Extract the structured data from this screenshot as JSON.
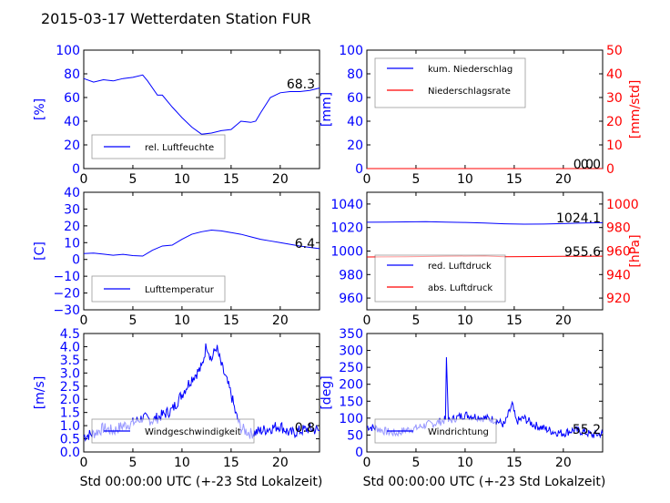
{
  "title": "2015-03-17 Wetterdaten Station FUR",
  "xlabel": "Std 00:00:00 UTC (+-23 Std Lokalzeit)",
  "colors": {
    "primary": "#0000ff",
    "secondary": "#ff0000",
    "light": "#8080ff"
  },
  "chart_data": [
    {
      "id": "p0",
      "type": "line",
      "ylabel": "[%]",
      "xlim": [
        0,
        24
      ],
      "ylim": [
        0,
        100
      ],
      "xticks": [
        "0",
        "5",
        "10",
        "15",
        "20"
      ],
      "yticks": [
        "0",
        "20",
        "40",
        "60",
        "80",
        "100"
      ],
      "legend": {
        "position": "lower-left",
        "entries": [
          "rel. Luftfeuchte"
        ]
      },
      "last_value": "68.3",
      "series": [
        {
          "name": "rel. Luftfeuchte",
          "x": [
            0,
            1,
            2,
            3,
            4,
            5,
            6,
            6.5,
            7.5,
            8,
            9,
            10,
            11,
            12,
            13,
            14,
            15,
            16,
            17,
            17.5,
            18,
            19,
            20,
            21,
            22,
            23,
            24
          ],
          "values": [
            76,
            73,
            75,
            74,
            76,
            77,
            79,
            74,
            62,
            62,
            52,
            43,
            35,
            29,
            30,
            32,
            33,
            40,
            39,
            40,
            47,
            60,
            64,
            65,
            65,
            66,
            68
          ]
        }
      ]
    },
    {
      "id": "p1",
      "type": "line",
      "ylabel": "[mm]",
      "ylabel2": "[mm/std]",
      "xlim": [
        0,
        24
      ],
      "ylim": [
        0,
        100
      ],
      "ylim2": [
        0,
        50
      ],
      "xticks": [
        "0",
        "5",
        "10",
        "15",
        "20"
      ],
      "yticks": [
        "0",
        "20",
        "40",
        "60",
        "80",
        "100"
      ],
      "yticks2": [
        "0",
        "10",
        "20",
        "30",
        "40",
        "50"
      ],
      "legend": {
        "position": "upper-left",
        "entries": [
          "kum. Niederschlag",
          "Niederschlagsrate"
        ]
      },
      "last_value": "0.0",
      "last_value2": "0.0",
      "series": [
        {
          "name": "kum. Niederschlag",
          "x": [
            0,
            24
          ],
          "values": [
            0,
            0
          ]
        },
        {
          "name": "Niederschlagsrate",
          "axis": "right",
          "x": [
            0,
            24
          ],
          "values": [
            0,
            0
          ]
        }
      ]
    },
    {
      "id": "p2",
      "type": "line",
      "ylabel": "[C]",
      "xlim": [
        0,
        24
      ],
      "ylim": [
        -30,
        40
      ],
      "xticks": [
        "0",
        "5",
        "10",
        "15",
        "20"
      ],
      "yticks": [
        "−30",
        "−20",
        "−10",
        "0",
        "10",
        "20",
        "30",
        "40"
      ],
      "legend": {
        "position": "lower-left",
        "entries": [
          "Lufttemperatur"
        ]
      },
      "last_value": "6.4",
      "series": [
        {
          "name": "Lufttemperatur",
          "x": [
            0,
            1,
            2,
            3,
            4,
            5,
            6,
            7,
            8,
            9,
            10,
            11,
            12,
            13,
            14,
            15,
            16,
            17,
            18,
            19,
            20,
            21,
            22,
            23,
            24
          ],
          "values": [
            3.5,
            3.8,
            3.2,
            2.5,
            3.0,
            2.3,
            2.0,
            5.5,
            8.0,
            8.5,
            12,
            15,
            16.5,
            17.5,
            17,
            16,
            15,
            13.5,
            12,
            11,
            10,
            9,
            8,
            7.2,
            6.4
          ]
        }
      ]
    },
    {
      "id": "p3",
      "type": "line",
      "ylabel2": "[hPa]",
      "xlim": [
        0,
        24
      ],
      "ylim": [
        950,
        1050
      ],
      "ylim2": [
        910,
        1010
      ],
      "xticks": [
        "0",
        "5",
        "10",
        "15",
        "20"
      ],
      "yticks": [
        "960",
        "980",
        "1000",
        "1020",
        "1040"
      ],
      "yticks2": [
        "920",
        "940",
        "960",
        "980",
        "1000"
      ],
      "legend": {
        "position": "lower-left",
        "entries": [
          "red. Luftdruck",
          "abs. Luftdruck"
        ]
      },
      "last_value": "1024.1",
      "last_value2": "955.6",
      "series": [
        {
          "name": "red. Luftdruck",
          "x": [
            0,
            2,
            4,
            6,
            8,
            10,
            12,
            14,
            16,
            18,
            20,
            22,
            24
          ],
          "values": [
            1024.5,
            1024.6,
            1024.8,
            1025,
            1024.6,
            1024.3,
            1023.8,
            1023.2,
            1022.9,
            1023,
            1023.4,
            1023.8,
            1024.1
          ]
        },
        {
          "name": "abs. Luftdruck",
          "axis": "right",
          "x": [
            0,
            4,
            8,
            12,
            14,
            16,
            20,
            24
          ],
          "values": [
            955,
            955.2,
            955.6,
            955.8,
            955.2,
            955.3,
            955.5,
            955.6
          ]
        }
      ]
    },
    {
      "id": "p4",
      "type": "line",
      "ylabel": "[m/s]",
      "xlim": [
        0,
        24
      ],
      "ylim": [
        0,
        4.5
      ],
      "xticks": [
        "0",
        "5",
        "10",
        "15",
        "20"
      ],
      "yticks": [
        "0.0",
        "0.5",
        "1.0",
        "1.5",
        "2.0",
        "2.5",
        "3.0",
        "3.5",
        "4.0",
        "4.5"
      ],
      "legend": {
        "position": "lower-left",
        "entries": [
          "Windgeschwindigkeit"
        ]
      },
      "last_value": "0.8",
      "series": [
        {
          "name": "Windgeschwindigkeit",
          "x": [
            0,
            1,
            2,
            3,
            4,
            5,
            6,
            7,
            8,
            9,
            10,
            11,
            12,
            12.5,
            13,
            13.5,
            14,
            15,
            15.5,
            16,
            17,
            18,
            19,
            20,
            21,
            22,
            23,
            24
          ],
          "values": [
            0.6,
            0.7,
            0.9,
            0.8,
            1.0,
            1.1,
            1.3,
            1.2,
            1.4,
            1.6,
            2.2,
            2.8,
            3.2,
            4.1,
            3.5,
            4.0,
            3.3,
            2.2,
            1.4,
            0.9,
            0.7,
            0.8,
            0.9,
            1.0,
            0.7,
            0.8,
            0.9,
            0.8
          ]
        }
      ]
    },
    {
      "id": "p5",
      "type": "line",
      "ylabel": "[deg]",
      "xlim": [
        0,
        24
      ],
      "ylim": [
        0,
        350
      ],
      "xticks": [
        "0",
        "5",
        "10",
        "15",
        "20"
      ],
      "yticks": [
        "0",
        "50",
        "100",
        "150",
        "200",
        "250",
        "300",
        "350"
      ],
      "legend": {
        "position": "lower-left",
        "entries": [
          "Windrichtung"
        ]
      },
      "last_value": "55.2",
      "series": [
        {
          "name": "Windrichtung",
          "x": [
            0,
            1,
            2,
            3,
            4,
            5,
            6,
            7,
            8,
            8.1,
            8.3,
            9,
            10,
            11,
            12,
            13,
            14,
            14.8,
            15.2,
            16,
            17,
            18,
            19,
            20,
            21,
            22,
            23,
            24
          ],
          "values": [
            75,
            70,
            60,
            55,
            65,
            70,
            80,
            85,
            95,
            280,
            90,
            100,
            110,
            105,
            100,
            95,
            80,
            140,
            90,
            100,
            80,
            70,
            60,
            55,
            65,
            60,
            50,
            55
          ]
        }
      ]
    }
  ]
}
